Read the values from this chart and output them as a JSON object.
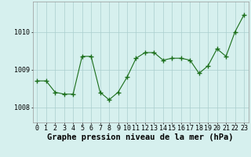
{
  "x": [
    0,
    1,
    2,
    3,
    4,
    5,
    6,
    7,
    8,
    9,
    10,
    11,
    12,
    13,
    14,
    15,
    16,
    17,
    18,
    19,
    20,
    21,
    22,
    23
  ],
  "y": [
    1008.7,
    1008.7,
    1008.4,
    1008.35,
    1008.35,
    1009.35,
    1009.35,
    1008.4,
    1008.2,
    1008.4,
    1008.8,
    1009.3,
    1009.45,
    1009.45,
    1009.25,
    1009.3,
    1009.3,
    1009.25,
    1008.9,
    1009.1,
    1009.55,
    1009.35,
    1010.0,
    1010.45
  ],
  "line_color": "#1a6e1a",
  "marker": "+",
  "marker_size": 4,
  "marker_linewidth": 1.0,
  "line_width": 0.8,
  "background_color": "#d6f0ee",
  "grid_color": "#aacece",
  "xlabel": "Graphe pression niveau de la mer (hPa)",
  "xlabel_fontsize": 7.5,
  "ylabel_ticks": [
    1008,
    1009,
    1010
  ],
  "ylim": [
    1007.6,
    1010.8
  ],
  "xlim": [
    -0.5,
    23.5
  ],
  "xtick_labels": [
    "0",
    "1",
    "2",
    "3",
    "4",
    "5",
    "6",
    "7",
    "8",
    "9",
    "10",
    "11",
    "12",
    "13",
    "14",
    "15",
    "16",
    "17",
    "18",
    "19",
    "20",
    "21",
    "22",
    "23"
  ],
  "tick_fontsize": 6.0
}
